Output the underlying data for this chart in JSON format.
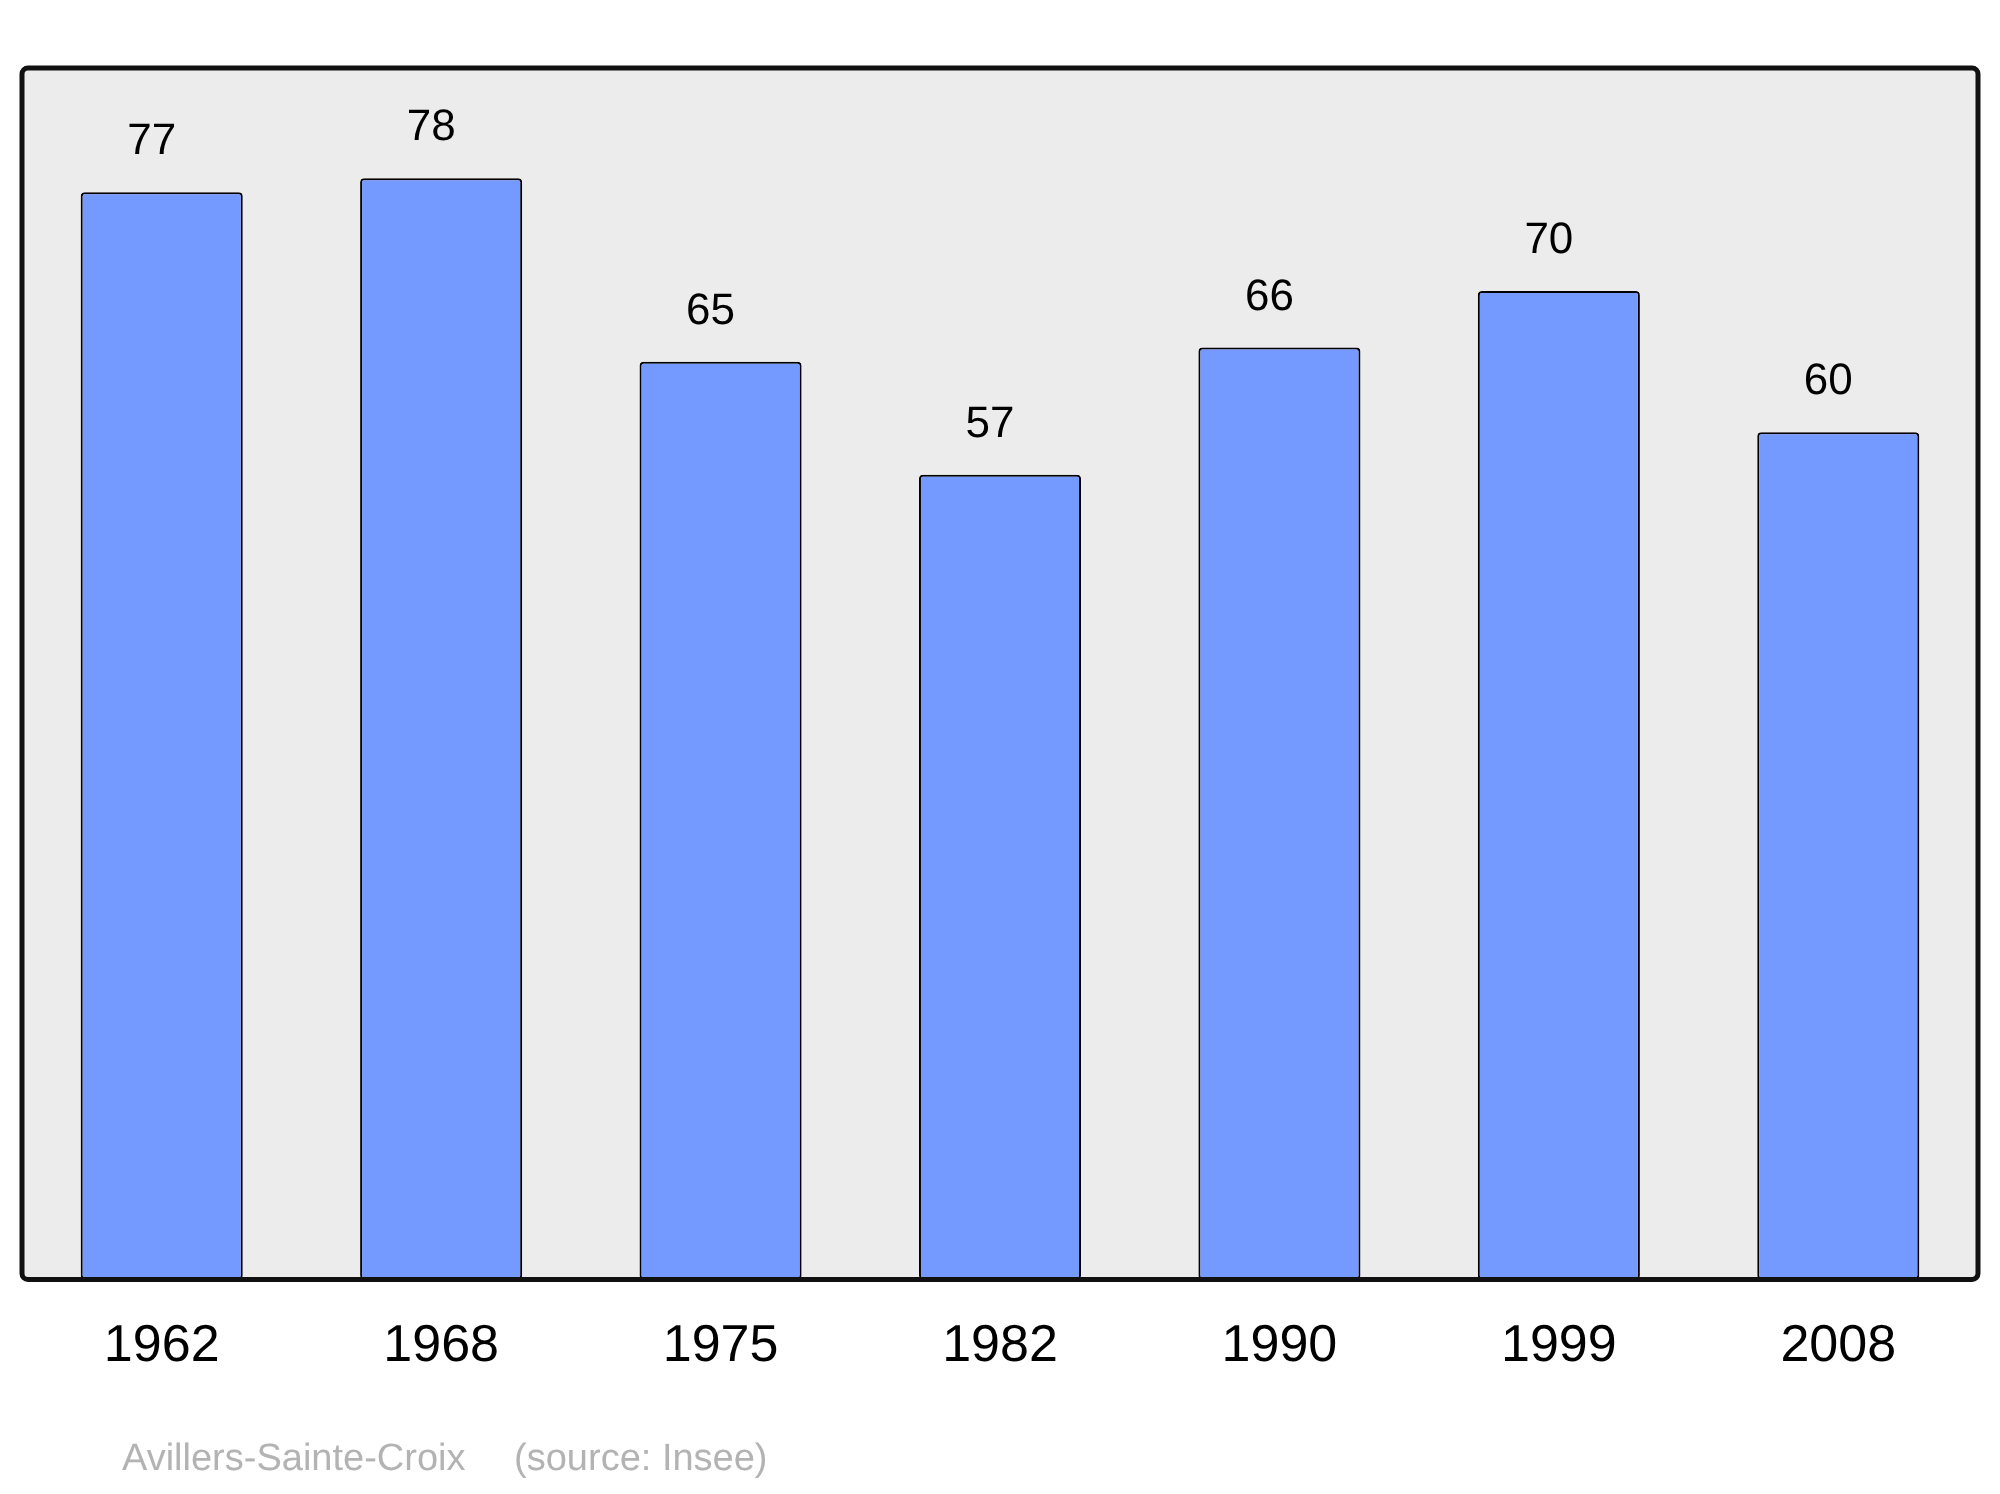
{
  "chart_data": {
    "type": "bar",
    "categories": [
      "1962",
      "1968",
      "1975",
      "1982",
      "1990",
      "1999",
      "2008"
    ],
    "values": [
      77,
      78,
      65,
      57,
      66,
      70,
      60
    ],
    "color": "#7499ff",
    "data_labels": true,
    "grid": false,
    "legend": false,
    "annotations": [
      "Avillers-Sainte-Croix    (source: Insee)"
    ]
  }
}
